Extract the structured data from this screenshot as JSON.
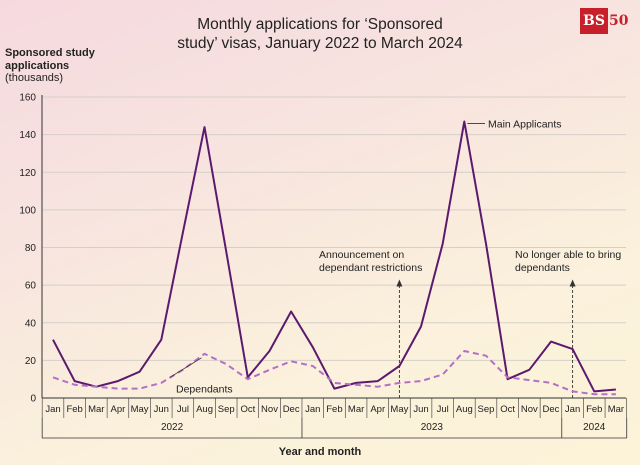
{
  "title_line1": "Monthly applications for ‘Sponsored",
  "title_line2": "study’ visas, January 2022 to March 2024",
  "logo": {
    "letters": "BS",
    "number": "50"
  },
  "y_axis_label": {
    "line1": "Sponsored study",
    "line2": "applications",
    "line3": "(thousands)"
  },
  "x_axis_title": "Year and month",
  "colors": {
    "main": "#5c1a6e",
    "dependants": "#b46fc6",
    "grid": "#d6cfc8",
    "axis": "#333333"
  },
  "chart_data": {
    "type": "line",
    "title": "Monthly applications for ‘Sponsored study’ visas, January 2022 to March 2024",
    "xlabel": "Year and month",
    "ylabel": "Sponsored study applications (thousands)",
    "ylim": [
      0,
      160
    ],
    "yticks": [
      0,
      20,
      40,
      60,
      80,
      100,
      120,
      140,
      160
    ],
    "grid": true,
    "months": [
      "Jan",
      "Feb",
      "Mar",
      "Apr",
      "May",
      "Jun",
      "Jul",
      "Aug",
      "Sep",
      "Oct",
      "Nov",
      "Dec",
      "Jan",
      "Feb",
      "Mar",
      "Apr",
      "May",
      "Jun",
      "Jul",
      "Aug",
      "Sep",
      "Oct",
      "Nov",
      "Dec",
      "Jan",
      "Feb",
      "Mar"
    ],
    "years": [
      {
        "label": "2022",
        "start": 0,
        "end": 11
      },
      {
        "label": "2023",
        "start": 12,
        "end": 23
      },
      {
        "label": "2024",
        "start": 24,
        "end": 26
      }
    ],
    "series": [
      {
        "name": "Main Applicants",
        "style": "solid",
        "values": [
          31,
          9,
          6,
          9,
          14,
          31,
          88,
          144,
          78,
          11,
          25,
          46,
          27,
          5,
          8,
          9,
          17,
          38,
          82,
          147,
          82,
          10,
          15,
          30,
          26,
          3.5,
          4.5
        ]
      },
      {
        "name": "Dependants",
        "style": "dashed",
        "values": [
          11,
          7,
          6,
          5,
          5,
          8,
          15,
          23.5,
          18,
          10,
          15,
          19.5,
          17,
          8,
          7,
          6,
          8,
          9,
          12.5,
          25,
          22.5,
          11,
          9.5,
          8,
          3.5,
          2,
          2
        ]
      }
    ],
    "annotations": [
      {
        "text_line1": "Announcement on",
        "text_line2": "dependant restrictions",
        "month_index": 16,
        "arrow_to": 0
      },
      {
        "text_line1": "No longer able to bring",
        "text_line2": "dependants",
        "month_index": 24,
        "arrow_to": 0
      }
    ],
    "series_labels": [
      {
        "text": "Main Applicants",
        "series": 0
      },
      {
        "text": "Dependants",
        "series": 1
      }
    ]
  }
}
